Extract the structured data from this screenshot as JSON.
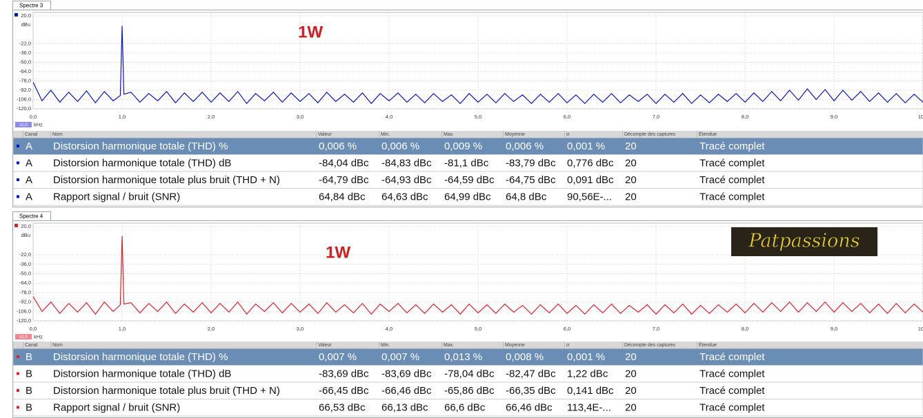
{
  "chart_data": [
    {
      "type": "line",
      "tab": "Spectre 3",
      "annotation": "1W",
      "ylabel": "dBu",
      "xlabel": "kHz",
      "x_scale_label": "x1,0",
      "xlim": [
        0,
        10
      ],
      "ylim": [
        -120,
        20
      ],
      "grid": true,
      "xticks": [
        {
          "value": 0,
          "label": "0,0"
        },
        {
          "value": 1,
          "label": "1,0"
        },
        {
          "value": 2,
          "label": "2,0"
        },
        {
          "value": 3,
          "label": "3,0"
        },
        {
          "value": 4,
          "label": "4,0"
        },
        {
          "value": 5,
          "label": "5,0"
        },
        {
          "value": 6,
          "label": "6,0"
        },
        {
          "value": 7,
          "label": "7,0"
        },
        {
          "value": 8,
          "label": "8,0"
        },
        {
          "value": 9,
          "label": "9,0"
        },
        {
          "value": 10,
          "label": "10,0"
        }
      ],
      "yticks": [
        {
          "value": 20,
          "label": "20,0"
        },
        {
          "value": -22,
          "label": "-22,0"
        },
        {
          "value": -36,
          "label": "-36,0"
        },
        {
          "value": -50,
          "label": "-50,0"
        },
        {
          "value": -64,
          "label": "-64,0"
        },
        {
          "value": -78,
          "label": "-78,0"
        },
        {
          "value": -92,
          "label": "-92,0"
        },
        {
          "value": -106,
          "label": "-106,0"
        },
        {
          "value": -120,
          "label": "-120,0"
        }
      ],
      "x": [
        0,
        0.1,
        0.2,
        0.3,
        0.4,
        0.5,
        0.6,
        0.7,
        0.8,
        0.9,
        0.98,
        1.0,
        1.02,
        1.1,
        1.2,
        1.3,
        1.4,
        1.5,
        1.6,
        1.7,
        1.8,
        1.9,
        2.0,
        2.1,
        2.2,
        2.3,
        2.4,
        2.5,
        2.6,
        2.7,
        2.8,
        2.9,
        3.0,
        3.1,
        3.2,
        3.3,
        3.4,
        3.5,
        3.6,
        3.7,
        3.8,
        3.9,
        4.0,
        4.1,
        4.2,
        4.3,
        4.4,
        4.5,
        4.6,
        4.7,
        4.8,
        4.9,
        5.0,
        5.1,
        5.2,
        5.3,
        5.4,
        5.5,
        5.6,
        5.7,
        5.8,
        5.9,
        6.0,
        6.1,
        6.2,
        6.3,
        6.4,
        6.5,
        6.6,
        6.7,
        6.8,
        6.9,
        7.0,
        7.1,
        7.2,
        7.3,
        7.4,
        7.5,
        7.6,
        7.7,
        7.8,
        7.9,
        8.0,
        8.1,
        8.2,
        8.3,
        8.4,
        8.5,
        8.6,
        8.7,
        8.8,
        8.9,
        9.0,
        9.1,
        9.2,
        9.3,
        9.4,
        9.5,
        9.6,
        9.7,
        9.8,
        9.9,
        10.0
      ],
      "series": [
        {
          "name": "A",
          "color": "#0a14c8",
          "values": [
            -80,
            -108,
            -92,
            -110,
            -95,
            -109,
            -93,
            -111,
            -94,
            -108,
            -100,
            5,
            -98,
            -95,
            -110,
            -97,
            -108,
            -94,
            -111,
            -96,
            -109,
            -95,
            -110,
            -96,
            -109,
            -94,
            -112,
            -97,
            -108,
            -95,
            -110,
            -96,
            -109,
            -97,
            -111,
            -95,
            -109,
            -98,
            -110,
            -96,
            -112,
            -97,
            -108,
            -96,
            -110,
            -98,
            -111,
            -97,
            -109,
            -99,
            -112,
            -97,
            -110,
            -98,
            -111,
            -97,
            -109,
            -99,
            -112,
            -98,
            -110,
            -97,
            -111,
            -99,
            -112,
            -98,
            -110,
            -97,
            -111,
            -99,
            -109,
            -98,
            -112,
            -98,
            -110,
            -97,
            -112,
            -99,
            -111,
            -98,
            -109,
            -97,
            -110,
            -96,
            -109,
            -94,
            -108,
            -92,
            -107,
            -90,
            -106,
            -91,
            -108,
            -92,
            -107,
            -94,
            -109,
            -96,
            -110,
            -97,
            -111,
            -98,
            -110
          ]
        }
      ]
    },
    {
      "type": "line",
      "tab": "Spectre 4",
      "annotation": "1W",
      "ylabel": "dBu",
      "xlabel": "kHz",
      "x_scale_label": "x1,0",
      "xlim": [
        0,
        10
      ],
      "ylim": [
        -120,
        20
      ],
      "grid": true,
      "xticks": [
        {
          "value": 0,
          "label": "0,0"
        },
        {
          "value": 1,
          "label": "1,0"
        },
        {
          "value": 2,
          "label": "2,0"
        },
        {
          "value": 3,
          "label": "3,0"
        },
        {
          "value": 4,
          "label": "4,0"
        },
        {
          "value": 5,
          "label": "5,0"
        },
        {
          "value": 6,
          "label": "6,0"
        },
        {
          "value": 7,
          "label": "7,0"
        },
        {
          "value": 8,
          "label": "8,0"
        },
        {
          "value": 9,
          "label": "9,0"
        },
        {
          "value": 10,
          "label": "10,0"
        }
      ],
      "yticks": [
        {
          "value": 20,
          "label": "20,0"
        },
        {
          "value": -22,
          "label": "-22,0"
        },
        {
          "value": -36,
          "label": "-36,0"
        },
        {
          "value": -50,
          "label": "-50,0"
        },
        {
          "value": -64,
          "label": "-64,0"
        },
        {
          "value": -78,
          "label": "-78,0"
        },
        {
          "value": -92,
          "label": "-92,0"
        },
        {
          "value": -106,
          "label": "-106,0"
        },
        {
          "value": -120,
          "label": "-120,0"
        }
      ],
      "x": [
        0,
        0.1,
        0.2,
        0.3,
        0.4,
        0.5,
        0.6,
        0.7,
        0.8,
        0.9,
        0.98,
        1.0,
        1.02,
        1.1,
        1.2,
        1.3,
        1.4,
        1.5,
        1.6,
        1.7,
        1.8,
        1.9,
        2.0,
        2.1,
        2.2,
        2.3,
        2.4,
        2.5,
        2.6,
        2.7,
        2.8,
        2.9,
        3.0,
        3.1,
        3.2,
        3.3,
        3.4,
        3.5,
        3.6,
        3.7,
        3.8,
        3.9,
        4.0,
        4.1,
        4.2,
        4.3,
        4.4,
        4.5,
        4.6,
        4.7,
        4.8,
        4.9,
        5.0,
        5.1,
        5.2,
        5.3,
        5.4,
        5.5,
        5.6,
        5.7,
        5.8,
        5.9,
        6.0,
        6.1,
        6.2,
        6.3,
        6.4,
        6.5,
        6.6,
        6.7,
        6.8,
        6.9,
        7.0,
        7.1,
        7.2,
        7.3,
        7.4,
        7.5,
        7.6,
        7.7,
        7.8,
        7.9,
        8.0,
        8.1,
        8.2,
        8.3,
        8.4,
        8.5,
        8.6,
        8.7,
        8.8,
        8.9,
        9.0,
        9.1,
        9.2,
        9.3,
        9.4,
        9.5,
        9.6,
        9.7,
        9.8,
        9.9,
        10.0
      ],
      "series": [
        {
          "name": "B",
          "color": "#e0202c",
          "values": [
            -84,
            -106,
            -92,
            -109,
            -94,
            -107,
            -93,
            -110,
            -92,
            -106,
            -96,
            6,
            -95,
            -93,
            -108,
            -94,
            -106,
            -92,
            -109,
            -95,
            -107,
            -93,
            -108,
            -94,
            -107,
            -92,
            -110,
            -95,
            -106,
            -93,
            -108,
            -94,
            -107,
            -95,
            -109,
            -93,
            -107,
            -96,
            -108,
            -94,
            -110,
            -95,
            -106,
            -94,
            -108,
            -96,
            -109,
            -95,
            -107,
            -96,
            -110,
            -95,
            -108,
            -96,
            -109,
            -95,
            -107,
            -97,
            -110,
            -96,
            -108,
            -95,
            -109,
            -97,
            -110,
            -96,
            -108,
            -95,
            -109,
            -97,
            -107,
            -96,
            -110,
            -96,
            -108,
            -95,
            -110,
            -97,
            -109,
            -96,
            -107,
            -95,
            -108,
            -94,
            -107,
            -93,
            -106,
            -92,
            -107,
            -93,
            -106,
            -92,
            -107,
            -93,
            -106,
            -94,
            -108,
            -95,
            -109,
            -94,
            -108,
            -95,
            -107
          ]
        }
      ]
    }
  ],
  "tables": [
    {
      "columns": [
        "Canal",
        "Nom",
        "Valeur",
        "Min.",
        "Max.",
        "Moyenne",
        "σ",
        "Décompte des captures",
        "Étendue"
      ],
      "rows": [
        [
          "A",
          "Distorsion harmonique totale (THD) %",
          "0,006 %",
          "0,006 %",
          "0,009 %",
          "0,006 %",
          "0,001 %",
          "20",
          "Tracé complet"
        ],
        [
          "A",
          "Distorsion harmonique totale (THD) dB",
          "-84,04 dBc",
          "-84,83 dBc",
          "-81,1 dBc",
          "-83,79 dBc",
          "0,776 dBc",
          "20",
          "Tracé complet"
        ],
        [
          "A",
          "Distorsion harmonique totale plus bruit (THD + N)",
          "-64,79 dBc",
          "-64,93 dBc",
          "-64,59 dBc",
          "-64,75 dBc",
          "0,091 dBc",
          "20",
          "Tracé complet"
        ],
        [
          "A",
          "Rapport signal / bruit (SNR)",
          "64,84 dBc",
          "64,63 dBc",
          "64,99 dBc",
          "64,8 dBc",
          "90,56E-...",
          "20",
          "Tracé complet"
        ]
      ]
    },
    {
      "columns": [
        "Canal",
        "Nom",
        "Valeur",
        "Min.",
        "Max.",
        "Moyenne",
        "σ",
        "Décompte des captures",
        "Étendue"
      ],
      "rows": [
        [
          "B",
          "Distorsion harmonique totale (THD) %",
          "0,007 %",
          "0,007 %",
          "0,013 %",
          "0,008 %",
          "0,001 %",
          "20",
          "Tracé complet"
        ],
        [
          "B",
          "Distorsion harmonique totale (THD) dB",
          "-83,69 dBc",
          "-83,69 dBc",
          "-78,04 dBc",
          "-82,47 dBc",
          "1,22 dBc",
          "20",
          "Tracé complet"
        ],
        [
          "B",
          "Distorsion harmonique totale plus bruit (THD + N)",
          "-66,45 dBc",
          "-66,46 dBc",
          "-65,86 dBc",
          "-66,35 dBc",
          "0,141 dBc",
          "20",
          "Tracé complet"
        ],
        [
          "B",
          "Rapport signal / bruit (SNR)",
          "66,53 dBc",
          "66,13 dBc",
          "66,6 dBc",
          "66,46 dBc",
          "113,4E-...",
          "20",
          "Tracé complet"
        ]
      ]
    }
  ],
  "watermark": "Patpassions"
}
